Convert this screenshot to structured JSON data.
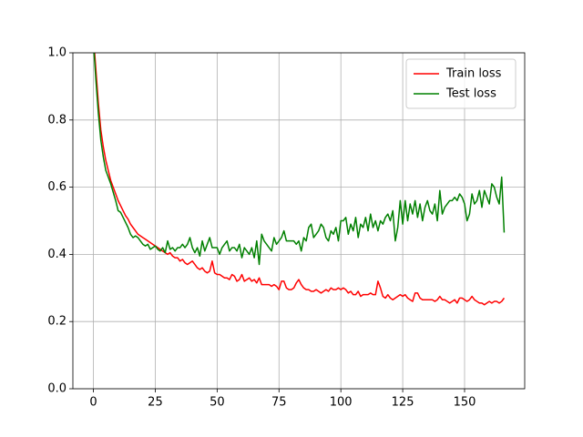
{
  "chart_data": {
    "type": "line",
    "x": [
      0,
      1,
      2,
      3,
      4,
      5,
      6,
      7,
      8,
      9,
      10,
      11,
      12,
      13,
      14,
      15,
      16,
      17,
      18,
      19,
      20,
      21,
      22,
      23,
      24,
      25,
      26,
      27,
      28,
      29,
      30,
      31,
      32,
      33,
      34,
      35,
      36,
      37,
      38,
      39,
      40,
      41,
      42,
      43,
      44,
      45,
      46,
      47,
      48,
      49,
      50,
      51,
      52,
      53,
      54,
      55,
      56,
      57,
      58,
      59,
      60,
      61,
      62,
      63,
      64,
      65,
      66,
      67,
      68,
      69,
      70,
      71,
      72,
      73,
      74,
      75,
      76,
      77,
      78,
      79,
      80,
      81,
      82,
      83,
      84,
      85,
      86,
      87,
      88,
      89,
      90,
      91,
      92,
      93,
      94,
      95,
      96,
      97,
      98,
      99,
      100,
      101,
      102,
      103,
      104,
      105,
      106,
      107,
      108,
      109,
      110,
      111,
      112,
      113,
      114,
      115,
      116,
      117,
      118,
      119,
      120,
      121,
      122,
      123,
      124,
      125,
      126,
      127,
      128,
      129,
      130,
      131,
      132,
      133,
      134,
      135,
      136,
      137,
      138,
      139,
      140,
      141,
      142,
      143,
      144,
      145,
      146,
      147,
      148,
      149,
      150,
      151,
      152,
      153,
      154,
      155,
      156,
      157,
      158,
      159,
      160,
      161,
      162,
      163,
      164,
      165,
      166
    ],
    "series": [
      {
        "name": "Train loss",
        "color": "#ff0000",
        "values": [
          1.05,
          0.95,
          0.85,
          0.77,
          0.72,
          0.68,
          0.65,
          0.62,
          0.6,
          0.58,
          0.56,
          0.545,
          0.53,
          0.515,
          0.505,
          0.49,
          0.48,
          0.47,
          0.46,
          0.455,
          0.45,
          0.445,
          0.44,
          0.435,
          0.43,
          0.425,
          0.42,
          0.415,
          0.41,
          0.405,
          0.4,
          0.405,
          0.395,
          0.39,
          0.39,
          0.38,
          0.385,
          0.375,
          0.37,
          0.375,
          0.38,
          0.37,
          0.36,
          0.355,
          0.36,
          0.35,
          0.345,
          0.35,
          0.38,
          0.345,
          0.34,
          0.34,
          0.335,
          0.33,
          0.33,
          0.325,
          0.34,
          0.335,
          0.32,
          0.325,
          0.34,
          0.32,
          0.325,
          0.33,
          0.32,
          0.325,
          0.315,
          0.33,
          0.31,
          0.31,
          0.31,
          0.31,
          0.305,
          0.31,
          0.305,
          0.295,
          0.32,
          0.32,
          0.3,
          0.295,
          0.295,
          0.3,
          0.315,
          0.325,
          0.31,
          0.3,
          0.295,
          0.295,
          0.29,
          0.29,
          0.295,
          0.29,
          0.285,
          0.29,
          0.295,
          0.29,
          0.3,
          0.295,
          0.295,
          0.3,
          0.295,
          0.3,
          0.295,
          0.285,
          0.29,
          0.28,
          0.28,
          0.29,
          0.275,
          0.28,
          0.28,
          0.28,
          0.285,
          0.28,
          0.28,
          0.32,
          0.3,
          0.275,
          0.27,
          0.28,
          0.27,
          0.265,
          0.27,
          0.275,
          0.28,
          0.275,
          0.28,
          0.27,
          0.265,
          0.26,
          0.285,
          0.285,
          0.27,
          0.265,
          0.265,
          0.265,
          0.265,
          0.265,
          0.26,
          0.265,
          0.275,
          0.265,
          0.265,
          0.26,
          0.255,
          0.26,
          0.265,
          0.255,
          0.27,
          0.27,
          0.265,
          0.26,
          0.265,
          0.275,
          0.265,
          0.26,
          0.255,
          0.255,
          0.25,
          0.255,
          0.26,
          0.255,
          0.26,
          0.26,
          0.255,
          0.26,
          0.27
        ]
      },
      {
        "name": "Test loss",
        "color": "#008000",
        "values": [
          1.03,
          0.92,
          0.82,
          0.74,
          0.69,
          0.65,
          0.63,
          0.61,
          0.585,
          0.56,
          0.53,
          0.525,
          0.51,
          0.495,
          0.48,
          0.46,
          0.45,
          0.455,
          0.45,
          0.44,
          0.43,
          0.425,
          0.43,
          0.415,
          0.42,
          0.425,
          0.415,
          0.41,
          0.42,
          0.405,
          0.44,
          0.415,
          0.42,
          0.41,
          0.42,
          0.42,
          0.43,
          0.42,
          0.43,
          0.45,
          0.42,
          0.405,
          0.42,
          0.395,
          0.44,
          0.41,
          0.43,
          0.45,
          0.42,
          0.42,
          0.42,
          0.4,
          0.42,
          0.43,
          0.44,
          0.41,
          0.42,
          0.42,
          0.41,
          0.43,
          0.39,
          0.42,
          0.41,
          0.4,
          0.42,
          0.39,
          0.44,
          0.37,
          0.46,
          0.44,
          0.43,
          0.42,
          0.41,
          0.45,
          0.43,
          0.44,
          0.45,
          0.47,
          0.44,
          0.44,
          0.44,
          0.44,
          0.43,
          0.44,
          0.41,
          0.45,
          0.44,
          0.48,
          0.49,
          0.45,
          0.46,
          0.47,
          0.49,
          0.48,
          0.45,
          0.44,
          0.47,
          0.46,
          0.48,
          0.44,
          0.5,
          0.5,
          0.51,
          0.46,
          0.49,
          0.47,
          0.51,
          0.45,
          0.49,
          0.48,
          0.51,
          0.47,
          0.52,
          0.48,
          0.5,
          0.47,
          0.5,
          0.49,
          0.51,
          0.52,
          0.5,
          0.53,
          0.44,
          0.48,
          0.56,
          0.49,
          0.56,
          0.5,
          0.55,
          0.52,
          0.56,
          0.51,
          0.55,
          0.5,
          0.54,
          0.56,
          0.53,
          0.52,
          0.55,
          0.5,
          0.59,
          0.52,
          0.54,
          0.55,
          0.56,
          0.56,
          0.57,
          0.56,
          0.58,
          0.57,
          0.55,
          0.5,
          0.52,
          0.58,
          0.55,
          0.56,
          0.59,
          0.54,
          0.59,
          0.57,
          0.55,
          0.61,
          0.6,
          0.57,
          0.55,
          0.63,
          0.465
        ]
      }
    ],
    "xlim": [
      -8.3,
      174.3
    ],
    "ylim": [
      0,
      1
    ],
    "xticks": [
      0,
      25,
      50,
      75,
      100,
      125,
      150
    ],
    "yticks": [
      {
        "value": 0,
        "label": "0.0"
      },
      {
        "value": 0.2,
        "label": "0.2"
      },
      {
        "value": 0.4,
        "label": "0.4"
      },
      {
        "value": 0.6,
        "label": "0.6"
      },
      {
        "value": 0.8,
        "label": "0.8"
      },
      {
        "value": 1,
        "label": "1.0"
      }
    ],
    "grid": true,
    "legend": "upper right"
  }
}
